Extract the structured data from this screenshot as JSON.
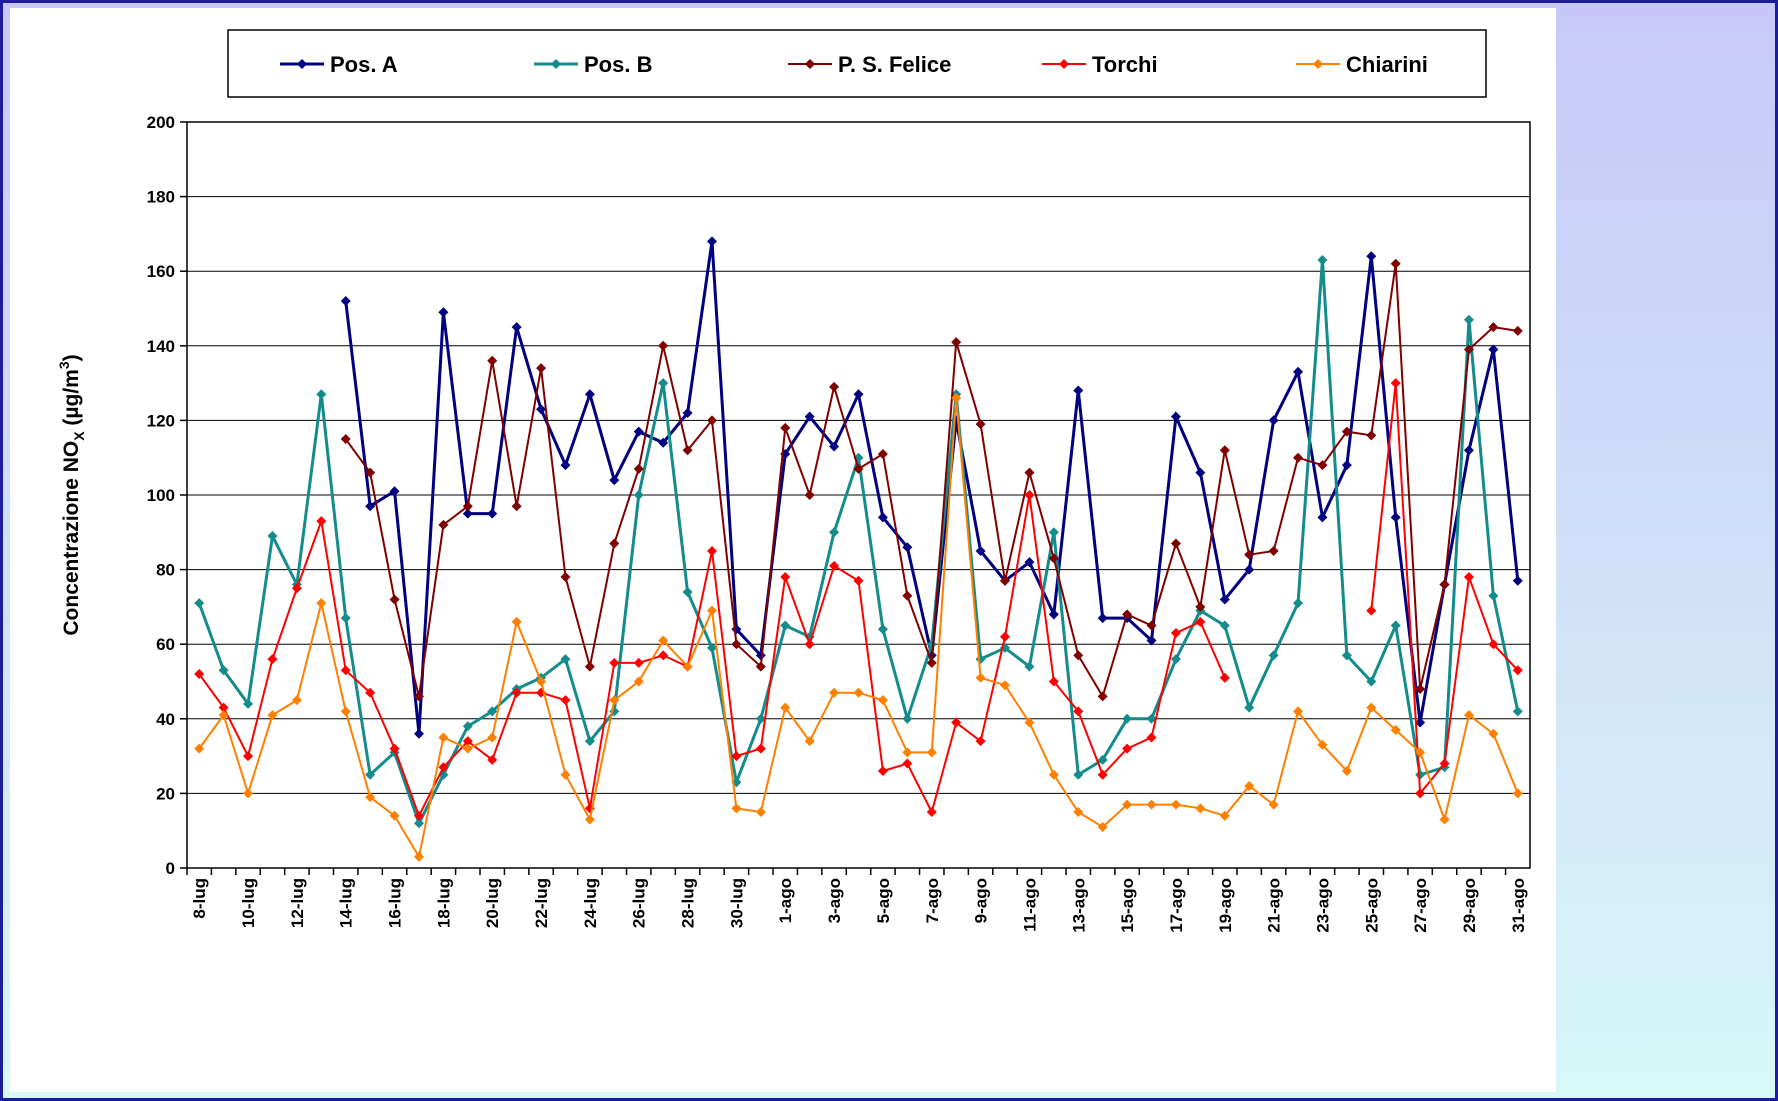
{
  "chart_data": {
    "type": "line",
    "y_label": {
      "text": "Concentrazione NO",
      "sub": "X",
      "unit": " (µg/m",
      "sup": "3",
      "close": ")"
    },
    "categories": [
      "8-lug",
      null,
      "10-lug",
      null,
      "12-lug",
      null,
      "14-lug",
      null,
      "16-lug",
      null,
      "18-lug",
      null,
      "20-lug",
      null,
      "22-lug",
      null,
      "24-lug",
      null,
      "26-lug",
      null,
      "28-lug",
      null,
      "30-lug",
      null,
      "1-ago",
      null,
      "3-ago",
      null,
      "5-ago",
      null,
      "7-ago",
      null,
      "9-ago",
      null,
      "11-ago",
      null,
      "13-ago",
      null,
      "15-ago",
      null,
      "17-ago",
      null,
      "19-ago",
      null,
      "21-ago",
      null,
      "23-ago",
      null,
      "25-ago",
      null,
      "27-ago",
      null,
      "29-ago",
      null,
      "31-ago"
    ],
    "ylim": [
      0,
      200
    ],
    "yticks": [
      0,
      20,
      40,
      60,
      80,
      100,
      120,
      140,
      160,
      180,
      200
    ],
    "grid": true,
    "legend": "top",
    "series": [
      {
        "name": "Pos. A",
        "color": "#000080",
        "values": [
          null,
          null,
          null,
          null,
          null,
          null,
          152,
          97,
          101,
          36,
          149,
          95,
          95,
          145,
          123,
          108,
          127,
          104,
          117,
          114,
          122,
          168,
          64,
          57,
          111,
          121,
          113,
          127,
          94,
          86,
          57,
          120,
          85,
          77,
          82,
          68,
          128,
          67,
          67,
          61,
          121,
          106,
          72,
          80,
          120,
          133,
          94,
          108,
          164,
          94,
          39,
          76,
          112,
          139,
          77
        ]
      },
      {
        "name": "Pos. B",
        "color": "#148c8c",
        "values": [
          71,
          53,
          44,
          89,
          76,
          127,
          67,
          25,
          31,
          12,
          25,
          38,
          42,
          48,
          51,
          56,
          34,
          42,
          100,
          130,
          74,
          59,
          23,
          40,
          65,
          62,
          90,
          110,
          64,
          40,
          60,
          127,
          56,
          59,
          54,
          90,
          25,
          29,
          40,
          40,
          56,
          69,
          65,
          43,
          57,
          71,
          163,
          57,
          50,
          65,
          25,
          27,
          147,
          73,
          42
        ]
      },
      {
        "name": "P. S. Felice",
        "color": "#800000",
        "values": [
          null,
          null,
          null,
          null,
          null,
          null,
          115,
          106,
          72,
          46,
          92,
          97,
          136,
          97,
          134,
          78,
          54,
          87,
          107,
          140,
          112,
          120,
          60,
          54,
          118,
          100,
          129,
          107,
          111,
          73,
          55,
          141,
          119,
          77,
          106,
          83,
          57,
          46,
          68,
          65,
          87,
          70,
          112,
          84,
          85,
          110,
          108,
          117,
          116,
          162,
          48,
          76,
          139,
          145,
          144
        ]
      },
      {
        "name": "Torchi",
        "color": "#ff0000",
        "values": [
          52,
          43,
          30,
          56,
          75,
          93,
          53,
          47,
          32,
          14,
          27,
          34,
          29,
          47,
          47,
          45,
          16,
          55,
          55,
          57,
          54,
          85,
          30,
          32,
          78,
          60,
          81,
          77,
          26,
          28,
          15,
          39,
          34,
          62,
          100,
          50,
          42,
          25,
          32,
          35,
          63,
          66,
          51,
          null,
          null,
          null,
          null,
          null,
          69,
          130,
          20,
          28,
          78,
          60,
          53
        ]
      },
      {
        "name": "Chiarini",
        "color": "#ff8000",
        "values": [
          32,
          41,
          20,
          41,
          45,
          71,
          42,
          19,
          14,
          3,
          35,
          32,
          35,
          66,
          50,
          25,
          13,
          45,
          50,
          61,
          54,
          69,
          16,
          15,
          43,
          34,
          47,
          47,
          45,
          31,
          31,
          126,
          51,
          49,
          39,
          25,
          15,
          11,
          17,
          17,
          17,
          16,
          14,
          22,
          17,
          42,
          33,
          26,
          43,
          37,
          31,
          13,
          41,
          36,
          20
        ]
      }
    ]
  }
}
